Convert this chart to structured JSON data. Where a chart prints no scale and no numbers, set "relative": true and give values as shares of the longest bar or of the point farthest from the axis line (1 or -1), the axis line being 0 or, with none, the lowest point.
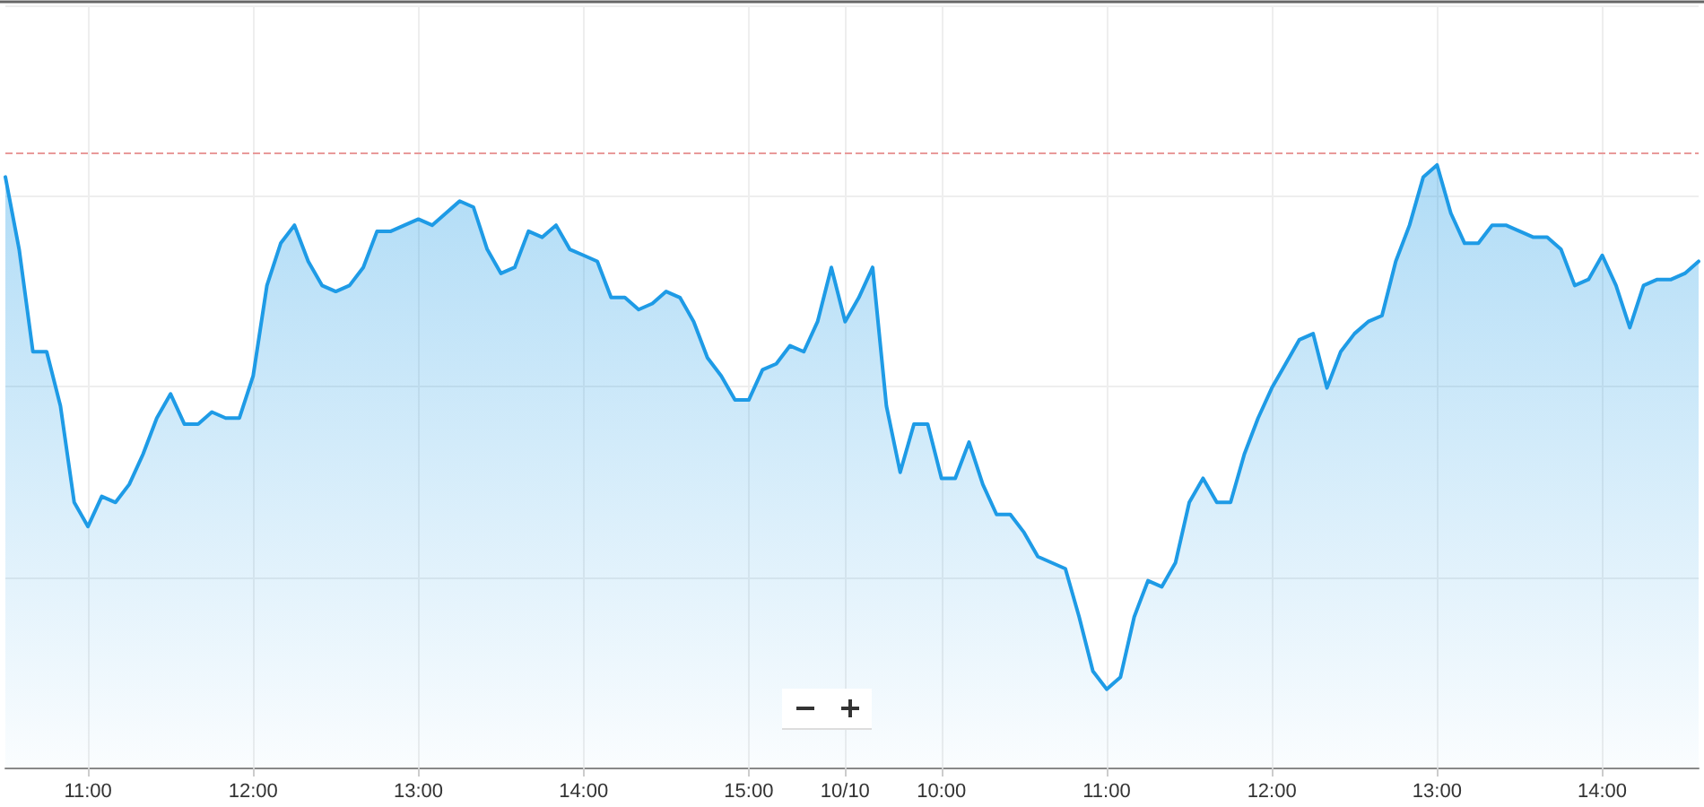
{
  "chart_data": {
    "type": "area",
    "relative": true,
    "tick_labels": "x",
    "grid": true,
    "marker": "none",
    "line_style": "solid",
    "categories": [
      null,
      null,
      null,
      null,
      null,
      null,
      "11:00",
      null,
      null,
      null,
      null,
      null,
      null,
      null,
      null,
      null,
      null,
      null,
      "12:00",
      null,
      null,
      null,
      null,
      null,
      null,
      null,
      null,
      null,
      null,
      null,
      "13:00",
      null,
      null,
      null,
      null,
      null,
      null,
      null,
      null,
      null,
      null,
      null,
      "14:00",
      null,
      null,
      null,
      null,
      null,
      null,
      null,
      null,
      null,
      null,
      null,
      "15:00",
      null,
      null,
      null,
      null,
      null,
      null,
      "10/10",
      null,
      null,
      null,
      null,
      null,
      null,
      "10:00",
      null,
      null,
      null,
      null,
      null,
      null,
      null,
      null,
      null,
      null,
      null,
      "11:00",
      null,
      null,
      null,
      null,
      null,
      null,
      null,
      null,
      null,
      null,
      null,
      "12:00",
      null,
      null,
      null,
      null,
      null,
      null,
      null,
      null,
      null,
      null,
      null,
      "13:00",
      null,
      null,
      null,
      null,
      null,
      null,
      null,
      null,
      null,
      null,
      null,
      "14:00",
      null,
      null,
      null,
      null,
      null,
      null,
      null
    ],
    "series": [
      {
        "color": "#1e9be6",
        "values": [
          0.98,
          0.86,
          0.69,
          0.69,
          0.6,
          0.44,
          0.4,
          0.45,
          0.44,
          0.47,
          0.52,
          0.58,
          0.62,
          0.57,
          0.57,
          0.59,
          0.58,
          0.58,
          0.65,
          0.8,
          0.87,
          0.9,
          0.84,
          0.8,
          0.79,
          0.8,
          0.83,
          0.89,
          0.89,
          0.9,
          0.91,
          0.9,
          0.92,
          0.94,
          0.93,
          0.86,
          0.82,
          0.83,
          0.89,
          0.88,
          0.9,
          0.86,
          0.85,
          0.84,
          0.78,
          0.78,
          0.76,
          0.77,
          0.79,
          0.78,
          0.74,
          0.68,
          0.65,
          0.61,
          0.61,
          0.66,
          0.67,
          0.7,
          0.69,
          0.74,
          0.83,
          0.74,
          0.78,
          0.83,
          0.6,
          0.49,
          0.57,
          0.57,
          0.48,
          0.48,
          0.54,
          0.47,
          0.42,
          0.42,
          0.39,
          0.35,
          0.34,
          0.33,
          0.25,
          0.16,
          0.13,
          0.15,
          0.25,
          0.31,
          0.3,
          0.34,
          0.44,
          0.48,
          0.44,
          0.44,
          0.52,
          0.58,
          0.63,
          0.67,
          0.71,
          0.72,
          0.63,
          0.69,
          0.72,
          0.74,
          0.75,
          0.84,
          0.9,
          0.98,
          1,
          0.92,
          0.87,
          0.87,
          0.9,
          0.9,
          0.89,
          0.88,
          0.88,
          0.86,
          0.8,
          0.81,
          0.85,
          0.8,
          0.73,
          0.8,
          0.81,
          0.81,
          0.82,
          0.84
        ]
      }
    ],
    "ref_lines": [
      {
        "axis": "y",
        "value": 1.02,
        "color": "#e89a9a",
        "line_style": "dashed"
      }
    ]
  }
}
